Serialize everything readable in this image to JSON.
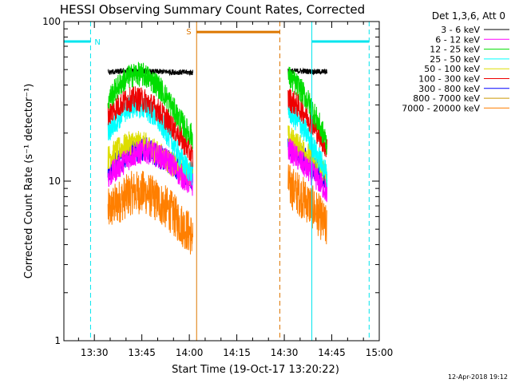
{
  "chart_data": {
    "type": "line",
    "title": "HESSI Observing Summary Count Rates, Corrected",
    "xlabel": "Start Time (19-Oct-17 13:20:22)",
    "ylabel": "Corrected Count Rate (s⁻¹ detector⁻¹)",
    "ylog": true,
    "xlim_minutes": [
      80.37,
      180
    ],
    "ylim": [
      1,
      100
    ],
    "x_ticks": [
      {
        "t": 90,
        "label": "13:30"
      },
      {
        "t": 105,
        "label": "13:45"
      },
      {
        "t": 120,
        "label": "14:00"
      },
      {
        "t": 135,
        "label": "14:15"
      },
      {
        "t": 150,
        "label": "14:30"
      },
      {
        "t": 165,
        "label": "14:45"
      },
      {
        "t": 180,
        "label": "15:00"
      }
    ],
    "y_ticks": [
      {
        "v": 1,
        "label": "1"
      },
      {
        "v": 10,
        "label": "10"
      },
      {
        "v": 100,
        "label": "100"
      }
    ],
    "legend_title": "Det 1,3,6, Att 0",
    "legend_position": "right",
    "series": [
      {
        "name": "3 - 6 keV",
        "color": "#000000",
        "segments": [
          [
            [
              94.3,
              48
            ],
            [
              97,
              48.5
            ],
            [
              100,
              49
            ],
            [
              104,
              49
            ],
            [
              108,
              48.5
            ],
            [
              112,
              48.5
            ],
            [
              118,
              48
            ],
            [
              121.1,
              48
            ]
          ],
          [
            [
              151.2,
              49
            ],
            [
              155,
              49
            ],
            [
              160,
              48.5
            ],
            [
              163.5,
              48.5
            ]
          ]
        ]
      },
      {
        "name": "6 - 12 keV",
        "color": "#ff00ff",
        "segments": [
          [
            [
              94.3,
              10.5
            ],
            [
              98,
              12.5
            ],
            [
              102,
              14.5
            ],
            [
              106,
              15.5
            ],
            [
              110,
              14.5
            ],
            [
              114,
              13
            ],
            [
              117,
              11
            ],
            [
              119,
              10
            ],
            [
              121.1,
              9.5
            ]
          ],
          [
            [
              151.2,
              16
            ],
            [
              154,
              14
            ],
            [
              157,
              12
            ],
            [
              160,
              10.5
            ],
            [
              163.5,
              8.5
            ]
          ]
        ]
      },
      {
        "name": "12 - 25 keV",
        "color": "#00dd00",
        "segments": [
          [
            [
              94.3,
              32
            ],
            [
              97,
              38
            ],
            [
              100,
              44
            ],
            [
              103,
              47
            ],
            [
              106,
              46
            ],
            [
              110,
              40
            ],
            [
              113,
              33
            ],
            [
              116,
              26
            ],
            [
              119,
              21
            ],
            [
              121.1,
              19
            ]
          ],
          [
            [
              151.2,
              45
            ],
            [
              154,
              40
            ],
            [
              157,
              33
            ],
            [
              160,
              25
            ],
            [
              163.5,
              17
            ]
          ]
        ]
      },
      {
        "name": "25 - 50 keV",
        "color": "#00ffff",
        "segments": [
          [
            [
              94.3,
              20
            ],
            [
              97,
              24
            ],
            [
              100,
              28
            ],
            [
              103,
              30
            ],
            [
              106,
              29
            ],
            [
              109,
              25.5
            ],
            [
              112,
              21.5
            ],
            [
              115,
              17
            ],
            [
              118,
              13
            ],
            [
              121.1,
              11
            ]
          ],
          [
            [
              151.2,
              28
            ],
            [
              154,
              24
            ],
            [
              157,
              20
            ],
            [
              160,
              15
            ],
            [
              163.5,
              11
            ]
          ]
        ]
      },
      {
        "name": "50 - 100 keV",
        "color": "#dddd00",
        "segments": [
          [
            [
              94.3,
              14
            ],
            [
              98,
              16
            ],
            [
              102,
              17.5
            ],
            [
              106,
              17
            ],
            [
              110,
              15
            ],
            [
              114,
              13
            ],
            [
              118,
              11.5
            ],
            [
              121.1,
              11
            ]
          ],
          [
            [
              151.2,
              19
            ],
            [
              154,
              17
            ],
            [
              157,
              15
            ],
            [
              160,
              13
            ],
            [
              163.5,
              11
            ]
          ]
        ]
      },
      {
        "name": "100 - 300 keV",
        "color": "#ee0000",
        "segments": [
          [
            [
              94.3,
              26
            ],
            [
              97,
              29
            ],
            [
              100,
              32
            ],
            [
              103,
              33
            ],
            [
              106,
              32
            ],
            [
              110,
              28
            ],
            [
              114,
              23
            ],
            [
              117,
              19
            ],
            [
              121.1,
              14
            ]
          ],
          [
            [
              151.2,
              33
            ],
            [
              154,
              30
            ],
            [
              157,
              26
            ],
            [
              160,
              21
            ],
            [
              163.5,
              16
            ]
          ]
        ]
      },
      {
        "name": "300 - 800 keV",
        "color": "#0000ff",
        "segments": [
          [
            [
              94.3,
              11.5
            ],
            [
              98,
              13.5
            ],
            [
              102,
              15.5
            ],
            [
              106,
              16
            ],
            [
              110,
              14.5
            ],
            [
              114,
              13
            ],
            [
              118,
              11.5
            ],
            [
              121.1,
              10.5
            ]
          ],
          [
            [
              151.2,
              17
            ],
            [
              154,
              15
            ],
            [
              157,
              13.5
            ],
            [
              160,
              12
            ],
            [
              163.5,
              10.5
            ]
          ]
        ]
      },
      {
        "name": "800 - 7000 keV",
        "color": "#cc9900",
        "segments": []
      },
      {
        "name": "7000 - 20000 keV",
        "color": "#ff7f00",
        "segments": [
          [
            [
              94.3,
              6.5
            ],
            [
              98,
              7.5
            ],
            [
              102,
              8.5
            ],
            [
              106,
              8.5
            ],
            [
              110,
              7.5
            ],
            [
              114,
              6.5
            ],
            [
              117,
              5.5
            ],
            [
              121.1,
              4.5
            ]
          ],
          [
            [
              151.2,
              9.5
            ],
            [
              154,
              8.5
            ],
            [
              157,
              7.5
            ],
            [
              160,
              6.5
            ],
            [
              163.5,
              5
            ]
          ]
        ]
      }
    ],
    "annotations": {
      "night": {
        "label": "N",
        "color": "#00e5ee",
        "bars": [
          [
            80.37,
            88.8
          ],
          [
            158.7,
            176.8
          ]
        ],
        "bar_level": 75,
        "boundaries": [
          {
            "t": 88.8,
            "style": "dashed"
          },
          {
            "t": 158.7,
            "style": "solid"
          },
          {
            "t": 176.8,
            "style": "dashed"
          }
        ]
      },
      "saa": {
        "label": "S",
        "color": "#dd7700",
        "bars": [
          [
            122.3,
            148.6
          ]
        ],
        "bar_level": 86,
        "boundaries": [
          {
            "t": 122.3,
            "style": "solid"
          },
          {
            "t": 148.6,
            "style": "dashed"
          }
        ]
      }
    }
  },
  "footer": {
    "timestamp": "12-Apr-2018 19:12"
  }
}
